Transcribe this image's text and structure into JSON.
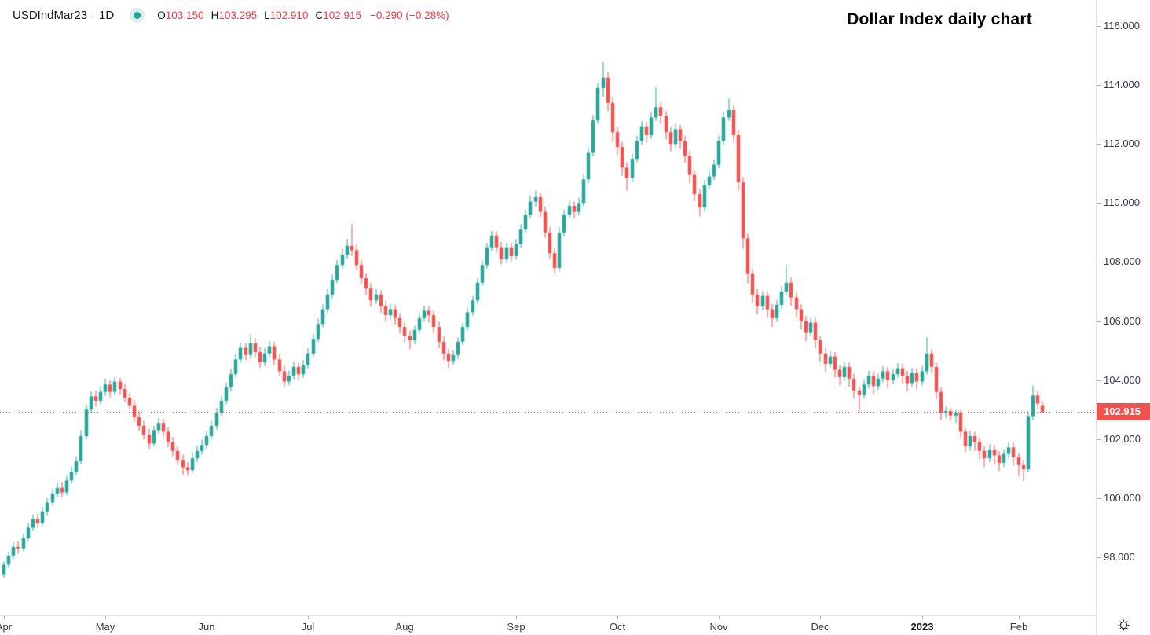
{
  "legend": {
    "symbol": "USDIndMar23",
    "separator": "·",
    "interval": "1D",
    "status_icon": "market-status-dot",
    "ohlc": {
      "o_label": "O",
      "o_value": "103.150",
      "h_label": "H",
      "h_value": "103.295",
      "l_label": "L",
      "l_value": "102.910",
      "c_label": "C",
      "c_value": "102.915"
    },
    "change": "−0.290 (−0.28%)"
  },
  "colors": {
    "up": "#26a69a",
    "down": "#ef5350",
    "legend_value": "#f23645",
    "price_line": "#ef5350",
    "price_tag_bg": "#ef5350",
    "price_tag_text": "#ffffff",
    "axis_text": "#363a45",
    "axis_border": "#e0e3eb",
    "tick": "#b2b5be",
    "background": "#ffffff"
  },
  "price_axis": {
    "ticks": [
      {
        "price": 116,
        "label": "116.000"
      },
      {
        "price": 114,
        "label": "114.000"
      },
      {
        "price": 112,
        "label": "112.000"
      },
      {
        "price": 110,
        "label": "110.000"
      },
      {
        "price": 108,
        "label": "108.000"
      },
      {
        "price": 106,
        "label": "106.000"
      },
      {
        "price": 104,
        "label": "104.000"
      },
      {
        "price": 102,
        "label": "102.000"
      },
      {
        "price": 100,
        "label": "100.000"
      },
      {
        "price": 98,
        "label": "98.000"
      }
    ],
    "last_price": 102.915,
    "last_price_label": "102.915"
  },
  "time_axis": {
    "ticks": [
      {
        "label": "Apr",
        "bar": 0,
        "bold": false
      },
      {
        "label": "May",
        "bar": 21,
        "bold": false
      },
      {
        "label": "Jun",
        "bar": 42,
        "bold": false
      },
      {
        "label": "Jul",
        "bar": 63,
        "bold": false
      },
      {
        "label": "Aug",
        "bar": 83,
        "bold": false
      },
      {
        "label": "Sep",
        "bar": 106,
        "bold": false
      },
      {
        "label": "Oct",
        "bar": 127,
        "bold": false
      },
      {
        "label": "Nov",
        "bar": 148,
        "bold": false
      },
      {
        "label": "Dec",
        "bar": 169,
        "bold": false
      },
      {
        "label": "2023",
        "bar": 190,
        "bold": true
      },
      {
        "label": "Feb",
        "bar": 210,
        "bold": false
      }
    ]
  },
  "chart_data": {
    "type": "candlestick",
    "title": "Dollar Index daily chart",
    "symbol": "USDIndMar23",
    "interval": "1D",
    "x_unit": "trading-day (Apr 2022 – Feb 2023)",
    "grid": "off",
    "ylim": [
      96.03,
      116.88
    ],
    "bars": 216,
    "first_bar_x": 5,
    "bar_spacing": 6.15,
    "body_width": 4.5,
    "last_close": 102.915,
    "candles": [
      [
        97.4,
        97.85,
        97.28,
        97.75
      ],
      [
        97.75,
        98.18,
        97.62,
        98.05
      ],
      [
        98.05,
        98.5,
        97.95,
        98.35
      ],
      [
        98.35,
        98.55,
        98.12,
        98.3
      ],
      [
        98.3,
        98.8,
        98.2,
        98.65
      ],
      [
        98.65,
        99.15,
        98.55,
        99.0
      ],
      [
        99.0,
        99.45,
        98.88,
        99.3
      ],
      [
        99.3,
        99.48,
        99.0,
        99.15
      ],
      [
        99.15,
        99.7,
        99.05,
        99.55
      ],
      [
        99.55,
        100.0,
        99.42,
        99.85
      ],
      [
        99.85,
        100.32,
        99.75,
        100.15
      ],
      [
        100.15,
        100.52,
        100.02,
        100.35
      ],
      [
        100.35,
        100.55,
        100.05,
        100.2
      ],
      [
        100.2,
        100.75,
        100.1,
        100.6
      ],
      [
        100.6,
        101.08,
        100.48,
        100.9
      ],
      [
        100.9,
        101.42,
        100.78,
        101.25
      ],
      [
        101.25,
        102.3,
        101.15,
        102.1
      ],
      [
        102.1,
        103.18,
        102.0,
        103.0
      ],
      [
        103.0,
        103.62,
        102.88,
        103.45
      ],
      [
        103.45,
        103.65,
        103.1,
        103.3
      ],
      [
        103.3,
        103.8,
        103.18,
        103.6
      ],
      [
        103.6,
        104.05,
        103.48,
        103.85
      ],
      [
        103.85,
        104.0,
        103.42,
        103.6
      ],
      [
        103.6,
        104.1,
        103.5,
        103.95
      ],
      [
        103.95,
        104.08,
        103.52,
        103.7
      ],
      [
        103.7,
        103.88,
        103.25,
        103.4
      ],
      [
        103.4,
        103.58,
        102.98,
        103.15
      ],
      [
        103.15,
        103.32,
        102.58,
        102.75
      ],
      [
        102.75,
        102.95,
        102.28,
        102.45
      ],
      [
        102.45,
        102.62,
        101.98,
        102.15
      ],
      [
        102.15,
        102.35,
        101.68,
        101.85
      ],
      [
        101.85,
        102.45,
        101.75,
        102.3
      ],
      [
        102.3,
        102.72,
        102.18,
        102.55
      ],
      [
        102.55,
        102.7,
        102.08,
        102.25
      ],
      [
        102.25,
        102.42,
        101.72,
        101.9
      ],
      [
        101.9,
        102.08,
        101.42,
        101.6
      ],
      [
        101.6,
        101.78,
        101.12,
        101.3
      ],
      [
        101.3,
        101.48,
        100.8,
        101.05
      ],
      [
        101.05,
        101.22,
        100.75,
        100.95
      ],
      [
        100.95,
        101.52,
        100.85,
        101.35
      ],
      [
        101.35,
        101.78,
        101.22,
        101.6
      ],
      [
        101.6,
        101.98,
        101.48,
        101.8
      ],
      [
        101.8,
        102.28,
        101.68,
        102.1
      ],
      [
        102.1,
        102.62,
        102.0,
        102.45
      ],
      [
        102.45,
        103.05,
        102.32,
        102.9
      ],
      [
        102.9,
        103.48,
        102.78,
        103.3
      ],
      [
        103.3,
        103.92,
        103.18,
        103.75
      ],
      [
        103.75,
        104.38,
        103.62,
        104.2
      ],
      [
        104.2,
        104.88,
        104.08,
        104.7
      ],
      [
        104.7,
        105.28,
        104.58,
        105.1
      ],
      [
        105.1,
        105.25,
        104.68,
        104.85
      ],
      [
        104.85,
        105.55,
        104.72,
        105.25
      ],
      [
        105.25,
        105.42,
        104.78,
        104.95
      ],
      [
        104.95,
        105.12,
        104.42,
        104.6
      ],
      [
        104.6,
        105.08,
        104.48,
        104.9
      ],
      [
        104.9,
        105.32,
        104.78,
        105.15
      ],
      [
        105.15,
        105.3,
        104.52,
        104.7
      ],
      [
        104.7,
        104.88,
        104.12,
        104.3
      ],
      [
        104.3,
        104.48,
        103.78,
        103.95
      ],
      [
        103.95,
        104.32,
        103.82,
        104.15
      ],
      [
        104.15,
        104.62,
        104.02,
        104.45
      ],
      [
        104.45,
        104.6,
        104.02,
        104.2
      ],
      [
        104.2,
        104.68,
        104.08,
        104.5
      ],
      [
        104.5,
        105.08,
        104.38,
        104.9
      ],
      [
        104.9,
        105.58,
        104.78,
        105.4
      ],
      [
        105.4,
        106.08,
        105.28,
        105.9
      ],
      [
        105.9,
        106.58,
        105.78,
        106.4
      ],
      [
        106.4,
        107.08,
        106.28,
        106.9
      ],
      [
        106.9,
        107.58,
        106.78,
        107.4
      ],
      [
        107.4,
        108.08,
        107.28,
        107.9
      ],
      [
        107.9,
        108.45,
        107.78,
        108.25
      ],
      [
        108.25,
        108.78,
        108.12,
        108.55
      ],
      [
        108.55,
        109.28,
        108.2,
        108.4
      ],
      [
        108.4,
        108.58,
        107.72,
        107.9
      ],
      [
        107.9,
        108.08,
        107.25,
        107.45
      ],
      [
        107.45,
        107.62,
        106.88,
        107.1
      ],
      [
        107.1,
        107.28,
        106.48,
        106.7
      ],
      [
        106.7,
        107.08,
        106.58,
        106.9
      ],
      [
        106.9,
        107.05,
        106.28,
        106.5
      ],
      [
        106.5,
        106.68,
        105.98,
        106.2
      ],
      [
        106.2,
        106.58,
        106.08,
        106.4
      ],
      [
        106.4,
        106.55,
        105.88,
        106.1
      ],
      [
        106.1,
        106.28,
        105.58,
        105.8
      ],
      [
        105.8,
        105.95,
        105.28,
        105.5
      ],
      [
        105.5,
        105.68,
        105.05,
        105.35
      ],
      [
        105.35,
        105.85,
        105.22,
        105.7
      ],
      [
        105.7,
        106.28,
        105.58,
        106.1
      ],
      [
        106.1,
        106.52,
        105.98,
        106.35
      ],
      [
        106.35,
        106.5,
        105.95,
        106.2
      ],
      [
        106.2,
        106.38,
        105.58,
        105.8
      ],
      [
        105.8,
        105.98,
        105.08,
        105.3
      ],
      [
        105.3,
        105.48,
        104.68,
        104.9
      ],
      [
        104.9,
        105.05,
        104.42,
        104.65
      ],
      [
        104.65,
        105.02,
        104.52,
        104.85
      ],
      [
        104.85,
        105.45,
        104.72,
        105.3
      ],
      [
        105.3,
        105.95,
        105.18,
        105.8
      ],
      [
        105.8,
        106.45,
        105.68,
        106.3
      ],
      [
        106.3,
        106.85,
        106.18,
        106.7
      ],
      [
        106.7,
        107.45,
        106.58,
        107.3
      ],
      [
        107.3,
        108.05,
        107.18,
        107.9
      ],
      [
        107.9,
        108.65,
        107.78,
        108.5
      ],
      [
        108.5,
        109.05,
        108.38,
        108.9
      ],
      [
        108.9,
        109.05,
        108.32,
        108.5
      ],
      [
        108.5,
        108.68,
        107.92,
        108.1
      ],
      [
        108.1,
        108.65,
        107.98,
        108.5
      ],
      [
        108.5,
        108.65,
        108.02,
        108.2
      ],
      [
        108.2,
        108.78,
        108.08,
        108.6
      ],
      [
        108.6,
        109.28,
        108.48,
        109.1
      ],
      [
        109.1,
        109.78,
        108.98,
        109.6
      ],
      [
        109.6,
        110.25,
        109.48,
        110.05
      ],
      [
        110.05,
        110.42,
        109.88,
        110.2
      ],
      [
        110.2,
        110.35,
        109.52,
        109.7
      ],
      [
        109.7,
        109.88,
        108.82,
        109.0
      ],
      [
        109.0,
        109.18,
        108.1,
        108.3
      ],
      [
        108.3,
        108.48,
        107.62,
        107.8
      ],
      [
        107.8,
        109.18,
        107.68,
        109.0
      ],
      [
        109.0,
        109.78,
        108.88,
        109.6
      ],
      [
        109.6,
        110.08,
        109.48,
        109.9
      ],
      [
        109.9,
        110.05,
        109.48,
        109.7
      ],
      [
        109.7,
        110.18,
        109.58,
        110.0
      ],
      [
        110.0,
        110.98,
        109.88,
        110.8
      ],
      [
        110.8,
        111.88,
        110.68,
        111.7
      ],
      [
        111.7,
        112.98,
        111.58,
        112.8
      ],
      [
        112.8,
        114.08,
        112.68,
        113.9
      ],
      [
        113.9,
        114.78,
        113.6,
        114.25
      ],
      [
        114.25,
        114.45,
        113.12,
        113.4
      ],
      [
        113.4,
        113.58,
        112.08,
        112.4
      ],
      [
        112.4,
        112.58,
        111.62,
        111.9
      ],
      [
        111.9,
        112.08,
        110.92,
        111.2
      ],
      [
        111.2,
        111.38,
        110.42,
        110.85
      ],
      [
        110.85,
        111.68,
        110.72,
        111.5
      ],
      [
        111.5,
        112.28,
        111.38,
        112.1
      ],
      [
        112.1,
        112.78,
        111.98,
        112.6
      ],
      [
        112.6,
        112.75,
        112.05,
        112.3
      ],
      [
        112.3,
        113.08,
        112.18,
        112.9
      ],
      [
        112.9,
        113.92,
        112.78,
        113.25
      ],
      [
        113.25,
        113.42,
        112.68,
        112.95
      ],
      [
        112.95,
        113.12,
        112.15,
        112.4
      ],
      [
        112.4,
        112.58,
        111.75,
        112.0
      ],
      [
        112.0,
        112.68,
        111.88,
        112.5
      ],
      [
        112.5,
        112.65,
        111.85,
        112.1
      ],
      [
        112.1,
        112.28,
        111.35,
        111.6
      ],
      [
        111.6,
        111.78,
        110.68,
        110.95
      ],
      [
        110.95,
        111.12,
        110.05,
        110.3
      ],
      [
        110.3,
        110.48,
        109.55,
        109.85
      ],
      [
        109.85,
        110.78,
        109.72,
        110.6
      ],
      [
        110.6,
        111.08,
        110.48,
        110.9
      ],
      [
        110.9,
        111.48,
        110.78,
        111.3
      ],
      [
        111.3,
        112.28,
        111.18,
        112.1
      ],
      [
        112.1,
        113.08,
        111.98,
        112.9
      ],
      [
        112.9,
        113.55,
        112.78,
        113.15
      ],
      [
        113.15,
        113.32,
        112.05,
        112.3
      ],
      [
        112.3,
        112.48,
        110.42,
        110.7
      ],
      [
        110.7,
        110.88,
        108.45,
        108.8
      ],
      [
        108.8,
        108.98,
        107.28,
        107.6
      ],
      [
        107.6,
        107.78,
        106.62,
        106.9
      ],
      [
        106.9,
        107.08,
        106.22,
        106.5
      ],
      [
        106.5,
        107.02,
        106.38,
        106.85
      ],
      [
        106.85,
        107.0,
        106.12,
        106.4
      ],
      [
        106.4,
        106.58,
        105.8,
        106.1
      ],
      [
        106.1,
        106.72,
        105.98,
        106.55
      ],
      [
        106.55,
        107.18,
        106.42,
        107.0
      ],
      [
        107.0,
        107.9,
        106.88,
        107.3
      ],
      [
        107.3,
        107.48,
        106.52,
        106.8
      ],
      [
        106.8,
        106.98,
        106.12,
        106.4
      ],
      [
        106.4,
        106.58,
        105.72,
        106.0
      ],
      [
        106.0,
        106.18,
        105.32,
        105.6
      ],
      [
        105.6,
        106.12,
        105.48,
        105.95
      ],
      [
        105.95,
        106.1,
        105.08,
        105.35
      ],
      [
        105.35,
        105.5,
        104.62,
        104.9
      ],
      [
        104.9,
        105.08,
        104.28,
        104.55
      ],
      [
        104.55,
        104.98,
        104.42,
        104.8
      ],
      [
        104.8,
        104.95,
        104.08,
        104.35
      ],
      [
        104.35,
        104.52,
        103.82,
        104.1
      ],
      [
        104.1,
        104.62,
        103.98,
        104.45
      ],
      [
        104.45,
        104.6,
        103.78,
        104.05
      ],
      [
        104.05,
        104.22,
        103.38,
        103.65
      ],
      [
        103.65,
        103.8,
        102.92,
        103.5
      ],
      [
        103.5,
        104.02,
        103.38,
        103.85
      ],
      [
        103.85,
        104.32,
        103.72,
        104.15
      ],
      [
        104.15,
        104.3,
        103.52,
        103.8
      ],
      [
        103.8,
        104.22,
        103.68,
        104.05
      ],
      [
        104.05,
        104.48,
        103.92,
        104.3
      ],
      [
        104.3,
        104.45,
        103.72,
        104.0
      ],
      [
        104.0,
        104.38,
        103.88,
        104.2
      ],
      [
        104.2,
        104.58,
        104.08,
        104.4
      ],
      [
        104.4,
        104.55,
        103.88,
        104.15
      ],
      [
        104.15,
        104.32,
        103.62,
        103.9
      ],
      [
        103.9,
        104.42,
        103.78,
        104.25
      ],
      [
        104.25,
        104.4,
        103.68,
        103.95
      ],
      [
        103.95,
        104.48,
        103.82,
        104.3
      ],
      [
        104.3,
        105.45,
        104.18,
        104.9
      ],
      [
        104.9,
        105.05,
        104.25,
        104.45
      ],
      [
        104.45,
        104.6,
        103.35,
        103.6
      ],
      [
        103.6,
        103.75,
        102.65,
        102.9
      ],
      [
        102.9,
        103.1,
        102.72,
        102.95
      ],
      [
        102.95,
        103.05,
        102.62,
        102.8
      ],
      [
        102.8,
        102.98,
        102.55,
        102.9
      ],
      [
        102.9,
        103.0,
        102.05,
        102.25
      ],
      [
        102.25,
        102.4,
        101.55,
        101.75
      ],
      [
        101.75,
        102.28,
        101.62,
        102.1
      ],
      [
        102.1,
        102.25,
        101.6,
        101.9
      ],
      [
        101.9,
        102.05,
        101.32,
        101.6
      ],
      [
        101.6,
        101.75,
        101.05,
        101.35
      ],
      [
        101.35,
        101.82,
        101.22,
        101.65
      ],
      [
        101.65,
        101.8,
        101.15,
        101.45
      ],
      [
        101.45,
        101.6,
        100.92,
        101.2
      ],
      [
        101.2,
        101.65,
        101.05,
        101.5
      ],
      [
        101.5,
        101.9,
        101.35,
        101.72
      ],
      [
        101.72,
        101.88,
        101.1,
        101.38
      ],
      [
        101.38,
        101.55,
        100.75,
        101.12
      ],
      [
        101.12,
        101.3,
        100.58,
        100.98
      ],
      [
        100.98,
        102.94,
        100.88,
        102.78
      ],
      [
        102.78,
        103.82,
        102.65,
        103.48
      ],
      [
        103.48,
        103.62,
        103.02,
        103.205
      ],
      [
        103.15,
        103.295,
        102.91,
        102.915
      ]
    ]
  }
}
